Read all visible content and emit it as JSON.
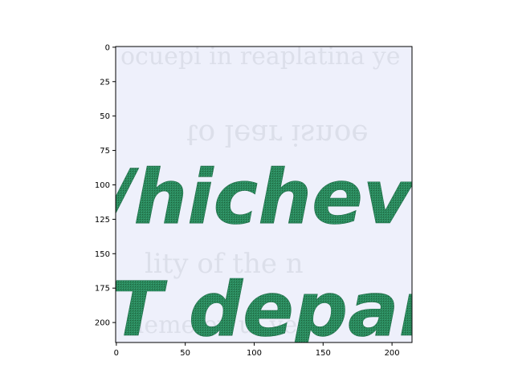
{
  "chart_data": {
    "type": "image",
    "xlim": [
      -0.5,
      214.5
    ],
    "ylim": [
      214.5,
      -0.5
    ],
    "x_ticks": [
      0,
      50,
      100,
      150,
      200
    ],
    "y_ticks": [
      0,
      25,
      50,
      75,
      100,
      125,
      150,
      175,
      200
    ],
    "image_text": {
      "line1": "/hicheve",
      "line2": "T depart"
    },
    "colors": {
      "background": "#eef0fb",
      "ink": "#2a8a5c",
      "ink_dark": "#1f6e48",
      "axes": "#000000"
    }
  }
}
